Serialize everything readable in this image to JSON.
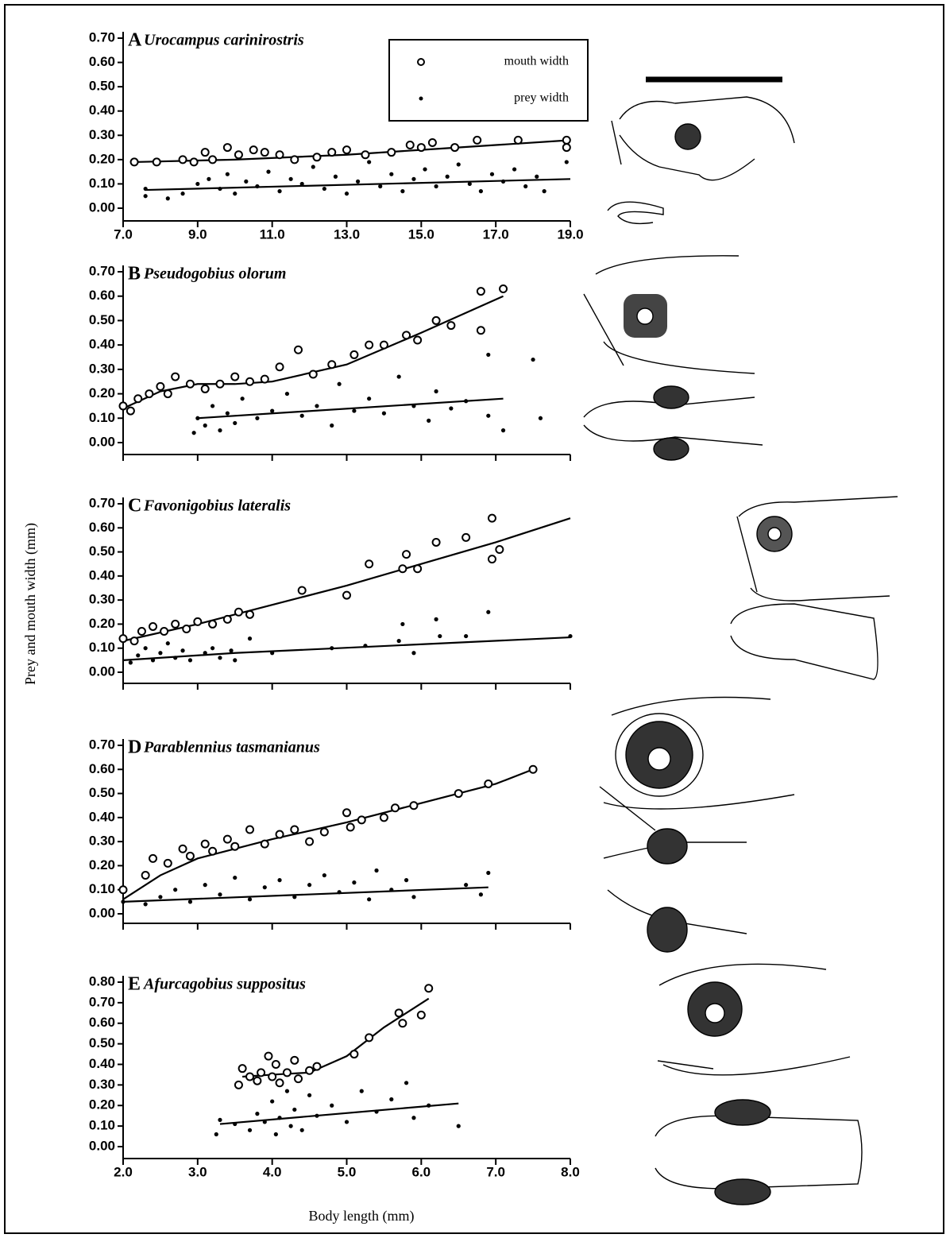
{
  "y_label": "Prey and mouth width (mm)",
  "x_label": "Body length (mm)",
  "chart_data": [
    {
      "type": "scatter",
      "label": "A",
      "title": "Urocampus carinirostris",
      "xlim": [
        7,
        19
      ],
      "xticks": [
        {
          "value": 7,
          "label": "7.0"
        },
        {
          "value": 9,
          "label": "9.0"
        },
        {
          "value": 11,
          "label": "11.0"
        },
        {
          "value": 13,
          "label": "13.0"
        },
        {
          "value": 15,
          "label": "15.0"
        },
        {
          "value": 17,
          "label": "17.0"
        },
        {
          "value": 19,
          "label": "19.0"
        }
      ],
      "ylim": [
        0,
        0.7
      ],
      "yticks": [
        {
          "value": 0,
          "label": "0.00"
        },
        {
          "value": 0.1,
          "label": "0.10"
        },
        {
          "value": 0.2,
          "label": "0.20"
        },
        {
          "value": 0.3,
          "label": "0.30"
        },
        {
          "value": 0.4,
          "label": "0.40"
        },
        {
          "value": 0.5,
          "label": "0.50"
        },
        {
          "value": 0.6,
          "label": "0.60"
        },
        {
          "value": 0.7,
          "label": "0.70"
        }
      ],
      "series": [
        {
          "name": "mouth width",
          "marker": "circle",
          "x": [
            7.3,
            7.9,
            8.6,
            8.9,
            9.2,
            9.4,
            9.8,
            10.1,
            10.5,
            10.8,
            11.2,
            11.6,
            12.2,
            12.6,
            13.0,
            13.5,
            14.2,
            14.7,
            15.0,
            15.3,
            15.9,
            16.5,
            17.6,
            18.9,
            18.9
          ],
          "values": [
            0.19,
            0.19,
            0.2,
            0.19,
            0.23,
            0.2,
            0.25,
            0.22,
            0.24,
            0.23,
            0.22,
            0.2,
            0.21,
            0.23,
            0.24,
            0.22,
            0.23,
            0.26,
            0.25,
            0.27,
            0.25,
            0.28,
            0.28,
            0.28,
            0.25
          ]
        },
        {
          "name": "prey width",
          "marker": "dot",
          "x": [
            7.6,
            7.6,
            8.2,
            8.6,
            9.0,
            9.3,
            9.6,
            9.8,
            10.0,
            10.3,
            10.6,
            10.9,
            11.2,
            11.5,
            11.8,
            12.1,
            12.4,
            12.7,
            13.0,
            13.3,
            13.6,
            13.9,
            14.2,
            14.5,
            14.8,
            15.1,
            15.4,
            15.7,
            16.0,
            16.3,
            16.6,
            16.9,
            17.2,
            17.5,
            17.8,
            18.1,
            18.3,
            18.9
          ],
          "values": [
            0.08,
            0.05,
            0.04,
            0.06,
            0.1,
            0.12,
            0.08,
            0.14,
            0.06,
            0.11,
            0.09,
            0.15,
            0.07,
            0.12,
            0.1,
            0.17,
            0.08,
            0.13,
            0.06,
            0.11,
            0.19,
            0.09,
            0.14,
            0.07,
            0.12,
            0.16,
            0.09,
            0.13,
            0.18,
            0.1,
            0.07,
            0.14,
            0.11,
            0.16,
            0.09,
            0.13,
            0.07,
            0.19
          ]
        }
      ],
      "fits": [
        {
          "x": [
            7.3,
            10,
            13,
            15,
            17,
            19
          ],
          "values": [
            0.19,
            0.2,
            0.22,
            0.24,
            0.26,
            0.28
          ]
        },
        {
          "x": [
            7.6,
            19
          ],
          "values": [
            0.075,
            0.12
          ]
        }
      ]
    },
    {
      "type": "scatter",
      "label": "B",
      "title": "Pseudogobius olorum",
      "xlim": [
        2,
        8
      ],
      "xticks": [
        2,
        3,
        4,
        5,
        6,
        7,
        8
      ],
      "ylim": [
        0,
        0.7
      ],
      "yticks": [
        {
          "value": 0,
          "label": "0.00"
        },
        {
          "value": 0.1,
          "label": "0.10"
        },
        {
          "value": 0.2,
          "label": "0.20"
        },
        {
          "value": 0.3,
          "label": "0.30"
        },
        {
          "value": 0.4,
          "label": "0.40"
        },
        {
          "value": 0.5,
          "label": "0.50"
        },
        {
          "value": 0.6,
          "label": "0.60"
        },
        {
          "value": 0.7,
          "label": "0.70"
        }
      ],
      "series": [
        {
          "marker": "circle",
          "x": [
            2.0,
            2.1,
            2.2,
            2.35,
            2.5,
            2.6,
            2.7,
            2.9,
            3.1,
            3.3,
            3.5,
            3.7,
            3.9,
            4.1,
            4.35,
            4.55,
            4.8,
            5.1,
            5.3,
            5.5,
            5.8,
            5.95,
            6.2,
            6.4,
            6.8,
            6.8,
            7.1
          ],
          "values": [
            0.15,
            0.13,
            0.18,
            0.2,
            0.23,
            0.2,
            0.27,
            0.24,
            0.22,
            0.24,
            0.27,
            0.25,
            0.26,
            0.31,
            0.38,
            0.28,
            0.32,
            0.36,
            0.4,
            0.4,
            0.44,
            0.42,
            0.5,
            0.48,
            0.62,
            0.46,
            0.63
          ]
        },
        {
          "marker": "dot",
          "x": [
            2.95,
            3.0,
            3.1,
            3.2,
            3.3,
            3.4,
            3.5,
            3.6,
            3.8,
            4.0,
            4.2,
            4.4,
            4.6,
            4.8,
            4.9,
            5.1,
            5.3,
            5.5,
            5.7,
            5.9,
            6.1,
            6.2,
            6.4,
            6.6,
            6.9,
            6.9,
            7.5,
            7.6,
            7.1
          ],
          "values": [
            0.04,
            0.1,
            0.07,
            0.15,
            0.05,
            0.12,
            0.08,
            0.18,
            0.1,
            0.13,
            0.2,
            0.11,
            0.15,
            0.07,
            0.24,
            0.13,
            0.18,
            0.12,
            0.27,
            0.15,
            0.09,
            0.21,
            0.14,
            0.17,
            0.11,
            0.36,
            0.34,
            0.1,
            0.05
          ]
        }
      ],
      "fits": [
        {
          "x": [
            2,
            2.5,
            3,
            3.5,
            4,
            5,
            6,
            7.1
          ],
          "values": [
            0.14,
            0.21,
            0.24,
            0.24,
            0.25,
            0.32,
            0.45,
            0.6
          ]
        },
        {
          "x": [
            3,
            7.1
          ],
          "values": [
            0.1,
            0.18
          ]
        }
      ]
    },
    {
      "type": "scatter",
      "label": "C",
      "title": "Favonigobius lateralis",
      "xlim": [
        2,
        8
      ],
      "xticks": [
        2,
        3,
        4,
        5,
        6,
        7,
        8
      ],
      "ylim": [
        0,
        0.7
      ],
      "yticks": [
        {
          "value": 0,
          "label": "0.00"
        },
        {
          "value": 0.1,
          "label": "0.10"
        },
        {
          "value": 0.2,
          "label": "0.20"
        },
        {
          "value": 0.3,
          "label": "0.30"
        },
        {
          "value": 0.4,
          "label": "0.40"
        },
        {
          "value": 0.5,
          "label": "0.50"
        },
        {
          "value": 0.6,
          "label": "0.60"
        },
        {
          "value": 0.7,
          "label": "0.70"
        }
      ],
      "series": [
        {
          "marker": "circle",
          "x": [
            2.0,
            2.15,
            2.25,
            2.4,
            2.55,
            2.7,
            2.85,
            3.0,
            3.2,
            3.4,
            3.55,
            3.7,
            4.4,
            5.0,
            5.3,
            5.75,
            5.8,
            5.95,
            6.2,
            6.6,
            6.95,
            7.05,
            6.95
          ],
          "values": [
            0.14,
            0.13,
            0.17,
            0.19,
            0.17,
            0.2,
            0.18,
            0.21,
            0.2,
            0.22,
            0.25,
            0.24,
            0.34,
            0.32,
            0.45,
            0.43,
            0.49,
            0.43,
            0.54,
            0.56,
            0.47,
            0.51,
            0.64
          ]
        },
        {
          "marker": "dot",
          "x": [
            2.1,
            2.2,
            2.3,
            2.4,
            2.5,
            2.6,
            2.7,
            2.8,
            2.9,
            3.1,
            3.2,
            3.3,
            3.45,
            3.5,
            3.7,
            4.0,
            4.8,
            5.25,
            5.7,
            5.75,
            5.9,
            6.2,
            6.25,
            6.6,
            6.9,
            8.0
          ],
          "values": [
            0.04,
            0.07,
            0.1,
            0.05,
            0.08,
            0.12,
            0.06,
            0.09,
            0.05,
            0.08,
            0.1,
            0.06,
            0.09,
            0.05,
            0.14,
            0.08,
            0.1,
            0.11,
            0.13,
            0.2,
            0.08,
            0.22,
            0.15,
            0.15,
            0.25,
            0.15
          ]
        }
      ],
      "fits": [
        {
          "x": [
            2,
            3,
            4,
            5,
            6,
            7,
            8
          ],
          "values": [
            0.13,
            0.2,
            0.28,
            0.36,
            0.45,
            0.54,
            0.64
          ]
        },
        {
          "x": [
            2,
            3.5,
            8
          ],
          "values": [
            0.05,
            0.08,
            0.145
          ]
        }
      ]
    },
    {
      "type": "scatter",
      "label": "D",
      "title": "Parablennius tasmanianus",
      "xlim": [
        2,
        8
      ],
      "xticks": [
        2,
        3,
        4,
        5,
        6,
        7,
        8
      ],
      "ylim": [
        0,
        0.7
      ],
      "yticks": [
        {
          "value": 0,
          "label": "0.00"
        },
        {
          "value": 0.1,
          "label": "0.10"
        },
        {
          "value": 0.2,
          "label": "0.20"
        },
        {
          "value": 0.3,
          "label": "0.30"
        },
        {
          "value": 0.4,
          "label": "0.40"
        },
        {
          "value": 0.5,
          "label": "0.50"
        },
        {
          "value": 0.6,
          "label": "0.60"
        },
        {
          "value": 0.7,
          "label": "0.70"
        }
      ],
      "series": [
        {
          "marker": "circle",
          "x": [
            2.0,
            2.3,
            2.4,
            2.6,
            2.8,
            2.9,
            3.1,
            3.2,
            3.4,
            3.5,
            3.7,
            3.9,
            4.1,
            4.3,
            4.5,
            4.7,
            5.0,
            5.05,
            5.2,
            5.5,
            5.65,
            5.9,
            6.5,
            6.9,
            7.5
          ],
          "values": [
            0.1,
            0.16,
            0.23,
            0.21,
            0.27,
            0.24,
            0.29,
            0.26,
            0.31,
            0.28,
            0.35,
            0.29,
            0.33,
            0.35,
            0.3,
            0.34,
            0.42,
            0.36,
            0.39,
            0.4,
            0.44,
            0.45,
            0.5,
            0.54,
            0.6
          ]
        },
        {
          "marker": "dot",
          "x": [
            2.0,
            2.3,
            2.5,
            2.7,
            2.9,
            3.1,
            3.3,
            3.5,
            3.7,
            3.9,
            4.1,
            4.3,
            4.5,
            4.7,
            4.9,
            5.1,
            5.3,
            5.4,
            5.6,
            5.8,
            5.9,
            6.6,
            6.8,
            6.9
          ],
          "values": [
            0.05,
            0.04,
            0.07,
            0.1,
            0.05,
            0.12,
            0.08,
            0.15,
            0.06,
            0.11,
            0.14,
            0.07,
            0.12,
            0.16,
            0.09,
            0.13,
            0.06,
            0.18,
            0.1,
            0.14,
            0.07,
            0.12,
            0.08,
            0.17
          ]
        }
      ],
      "fits": [
        {
          "x": [
            2,
            2.5,
            3,
            4,
            5,
            6,
            7,
            7.5
          ],
          "values": [
            0.06,
            0.16,
            0.23,
            0.31,
            0.38,
            0.46,
            0.54,
            0.6
          ]
        },
        {
          "x": [
            2,
            6.9
          ],
          "values": [
            0.05,
            0.11
          ]
        }
      ]
    },
    {
      "type": "scatter",
      "label": "E",
      "title": "Afurcagobius suppositus",
      "xlim": [
        2,
        8
      ],
      "xticks": [
        {
          "value": 2,
          "label": "2.0"
        },
        {
          "value": 3,
          "label": "3.0"
        },
        {
          "value": 4,
          "label": "4.0"
        },
        {
          "value": 5,
          "label": "5.0"
        },
        {
          "value": 6,
          "label": "6.0"
        },
        {
          "value": 7,
          "label": "7.0"
        },
        {
          "value": 8,
          "label": "8.0"
        }
      ],
      "ylim": [
        0,
        0.8
      ],
      "yticks": [
        {
          "value": 0,
          "label": "0.00"
        },
        {
          "value": 0.1,
          "label": "0.10"
        },
        {
          "value": 0.2,
          "label": "0.20"
        },
        {
          "value": 0.3,
          "label": "0.30"
        },
        {
          "value": 0.4,
          "label": "0.40"
        },
        {
          "value": 0.5,
          "label": "0.50"
        },
        {
          "value": 0.6,
          "label": "0.60"
        },
        {
          "value": 0.7,
          "label": "0.70"
        },
        {
          "value": 0.8,
          "label": "0.80"
        }
      ],
      "series": [
        {
          "marker": "circle",
          "x": [
            3.55,
            3.6,
            3.7,
            3.8,
            3.85,
            3.95,
            4.0,
            4.05,
            4.1,
            4.2,
            4.3,
            4.35,
            4.5,
            4.6,
            5.1,
            5.3,
            5.7,
            5.75,
            6.0,
            6.1
          ],
          "values": [
            0.3,
            0.38,
            0.34,
            0.32,
            0.36,
            0.44,
            0.34,
            0.4,
            0.31,
            0.36,
            0.42,
            0.33,
            0.37,
            0.39,
            0.45,
            0.53,
            0.65,
            0.6,
            0.64,
            0.77
          ]
        },
        {
          "marker": "dot",
          "x": [
            3.25,
            3.3,
            3.5,
            3.7,
            3.8,
            3.9,
            4.0,
            4.05,
            4.1,
            4.2,
            4.25,
            4.3,
            4.4,
            4.5,
            4.6,
            4.8,
            5.0,
            5.2,
            5.4,
            5.6,
            5.8,
            5.9,
            6.1,
            6.5
          ],
          "values": [
            0.06,
            0.13,
            0.11,
            0.08,
            0.16,
            0.12,
            0.22,
            0.06,
            0.14,
            0.27,
            0.1,
            0.18,
            0.08,
            0.25,
            0.15,
            0.2,
            0.12,
            0.27,
            0.17,
            0.23,
            0.31,
            0.14,
            0.2,
            0.1
          ]
        }
      ],
      "fits": [
        {
          "x": [
            3.6,
            4,
            4.5,
            5,
            5.5,
            6.1
          ],
          "values": [
            0.34,
            0.35,
            0.36,
            0.44,
            0.58,
            0.72
          ]
        },
        {
          "x": [
            3.3,
            6.5
          ],
          "values": [
            0.11,
            0.21
          ]
        }
      ]
    }
  ]
}
